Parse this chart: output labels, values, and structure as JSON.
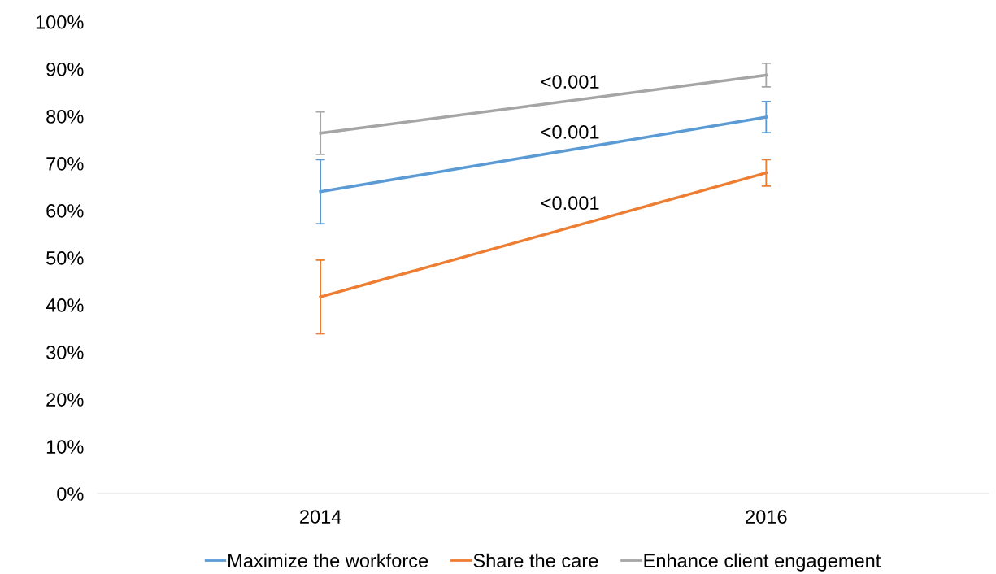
{
  "chart_data": {
    "type": "line",
    "categories": [
      "2014",
      "2016"
    ],
    "series": [
      {
        "name": "Maximize the workforce",
        "color": "#5b9bd5",
        "values": [
          64.0,
          79.8
        ],
        "errors": [
          6.8,
          3.3
        ]
      },
      {
        "name": "Share the care",
        "color": "#ed7d31",
        "values": [
          41.7,
          68.0
        ],
        "errors": [
          7.8,
          2.8
        ]
      },
      {
        "name": "Enhance client engagement",
        "color": "#a5a5a5",
        "values": [
          76.4,
          88.7
        ],
        "errors": [
          4.5,
          2.5
        ]
      }
    ],
    "ylim": [
      0,
      100
    ],
    "yticks": [
      {
        "value": 0,
        "label": "0%"
      },
      {
        "value": 10,
        "label": "10%"
      },
      {
        "value": 20,
        "label": "20%"
      },
      {
        "value": 30,
        "label": "30%"
      },
      {
        "value": 40,
        "label": "40%"
      },
      {
        "value": 50,
        "label": "50%"
      },
      {
        "value": 60,
        "label": "60%"
      },
      {
        "value": 70,
        "label": "70%"
      },
      {
        "value": 80,
        "label": "80%"
      },
      {
        "value": 90,
        "label": "90%"
      },
      {
        "value": 100,
        "label": "100%"
      }
    ],
    "annotations": [
      "<0.001",
      "<0.001",
      "<0.001"
    ],
    "legend": "bottom",
    "grid": false,
    "marker": "none",
    "line_style": "solid"
  }
}
